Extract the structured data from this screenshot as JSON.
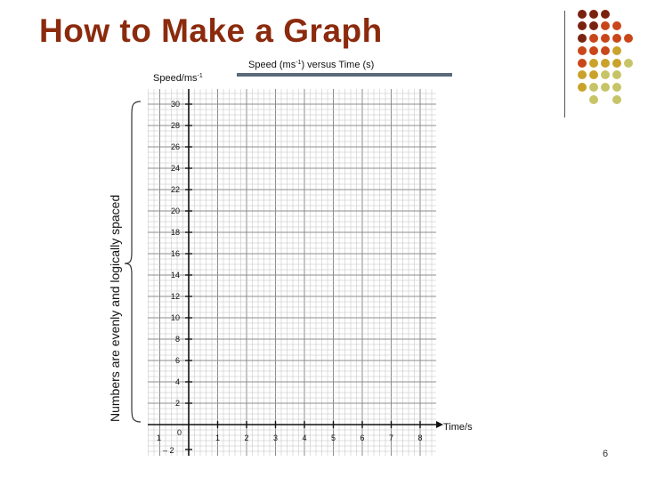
{
  "slide": {
    "title": "How to Make a Graph",
    "page_number": "6",
    "side_annotation": "Numbers are evenly and logically spaced"
  },
  "graph": {
    "caption_text": "Speed (ms",
    "caption_sup": "-1",
    "caption_tail": ") versus Time (s)",
    "ylabel_text": "Speed/ms",
    "ylabel_sup": "-1",
    "xlabel": "Time/s",
    "y_ticks": [
      "30",
      "28",
      "26",
      "24",
      "22",
      "20",
      "18",
      "16",
      "14",
      "12",
      "10",
      "8",
      "6",
      "4",
      "2"
    ],
    "y_neg": "– 2",
    "origin_label": "0",
    "x_left": "1",
    "x_ticks": [
      "1",
      "2",
      "3",
      "4",
      "5",
      "6",
      "7",
      "8"
    ]
  },
  "colors": {
    "title": "#8b2a0d",
    "dot_dark": "#7a2210",
    "dot_orange": "#c8461a",
    "dot_gold": "#c9a22a",
    "dot_olive": "#c7c468",
    "grid_minor": "#bfbfbf",
    "grid_major": "#8c8c8c",
    "caption_bar": "#5a6a7a"
  }
}
